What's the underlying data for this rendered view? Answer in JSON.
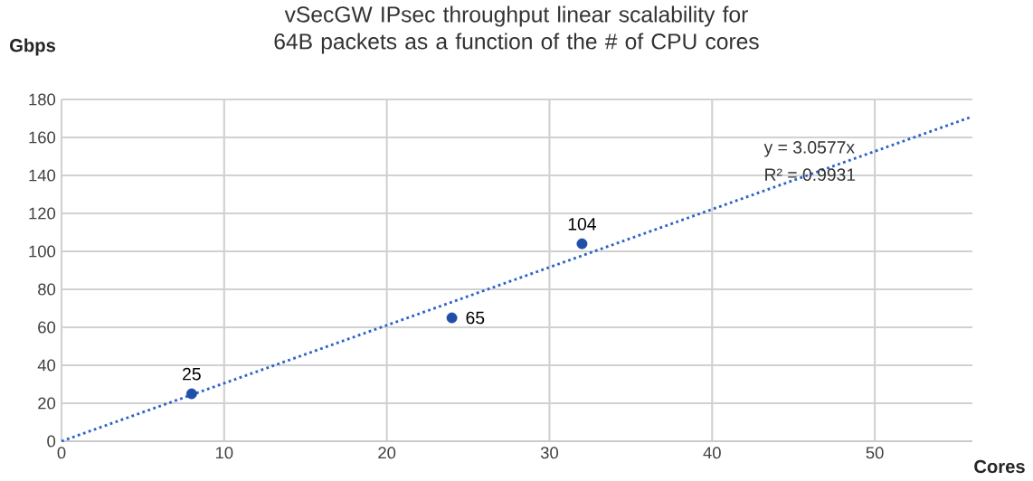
{
  "chart_data": {
    "type": "scatter",
    "title": "vSecGW IPsec throughput linear scalability for 64B packets as a function of the # of CPU cores",
    "xlabel": "Cores",
    "ylabel": "Gbps",
    "series": [
      {
        "color": "#1f4fa8",
        "x": [
          8,
          24,
          32
        ],
        "values": [
          25,
          65,
          104
        ],
        "value_labels": [
          "25",
          "65",
          "104"
        ],
        "marker": "circle"
      },
      {
        "type": "line",
        "color": "#2e62c9",
        "x": [
          0,
          56
        ],
        "values": [
          0,
          171
        ],
        "line_style": "dotted",
        "marker": "none"
      }
    ],
    "annotations": [
      "y = 3.0577x",
      "R² = 0.9931"
    ],
    "xlim": [
      0,
      56
    ],
    "xticks": [
      0,
      10,
      20,
      30,
      40,
      50
    ],
    "ylim": [
      0,
      180
    ],
    "yticks": [
      0,
      20,
      40,
      60,
      80,
      100,
      120,
      140,
      160,
      180
    ],
    "grid": true
  }
}
